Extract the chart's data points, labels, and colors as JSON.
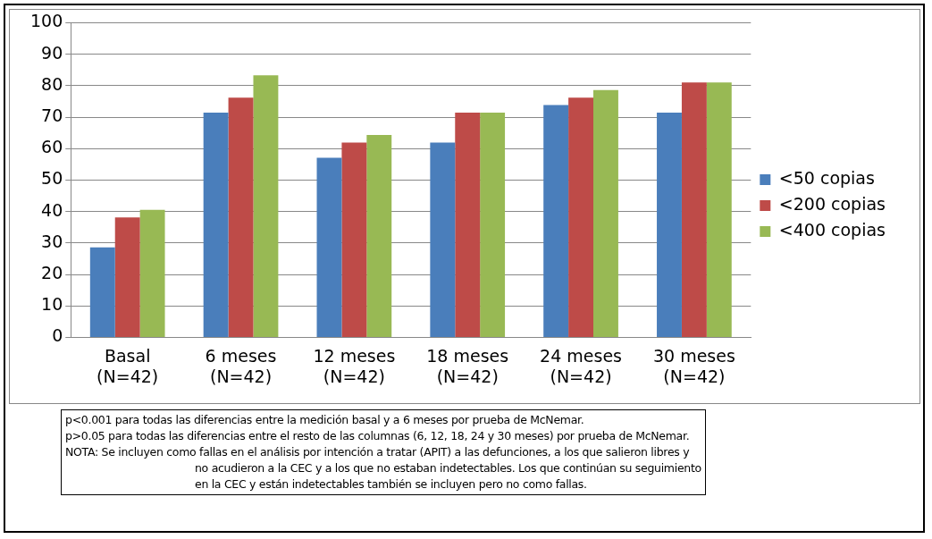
{
  "chart_data": {
    "type": "bar",
    "categories": [
      "Basal\n(N=42)",
      "6 meses\n(N=42)",
      "12 meses\n(N=42)",
      "18 meses\n(N=42)",
      "24 meses\n(N=42)",
      "30 meses\n(N=42)"
    ],
    "series": [
      {
        "name": "<50 copias",
        "color": "#4a7ebb",
        "values": [
          28.6,
          71.4,
          57.1,
          61.9,
          73.8,
          71.4
        ]
      },
      {
        "name": "<200 copias",
        "color": "#be4b48",
        "values": [
          38.1,
          76.2,
          61.9,
          71.4,
          76.2,
          81.0
        ]
      },
      {
        "name": "<400 copias",
        "color": "#98b954",
        "values": [
          40.5,
          83.3,
          64.3,
          71.4,
          78.6,
          81.0
        ]
      }
    ],
    "ylim": [
      0,
      100
    ],
    "yticks": [
      0,
      10,
      20,
      30,
      40,
      50,
      60,
      70,
      80,
      90,
      100
    ],
    "grid": "y",
    "legend": "right",
    "annotations": [
      "p<0.001 para todas las diferencias entre la medición basal y a 6 meses por prueba de McNemar.",
      "p>0.05 para todas las diferencias entre el resto de las columnas (6, 12, 18, 24 y 30 meses) por prueba de McNemar.",
      "NOTA: Se incluyen como fallas en el análisis por intención a tratar (APIT) a las defunciones, a los que salieron libres y  no acudieron a la CEC y a los que no estaban indetectables. Los que continúan su seguimiento en la CEC y están indetectables también se incluyen pero no como fallas."
    ]
  }
}
